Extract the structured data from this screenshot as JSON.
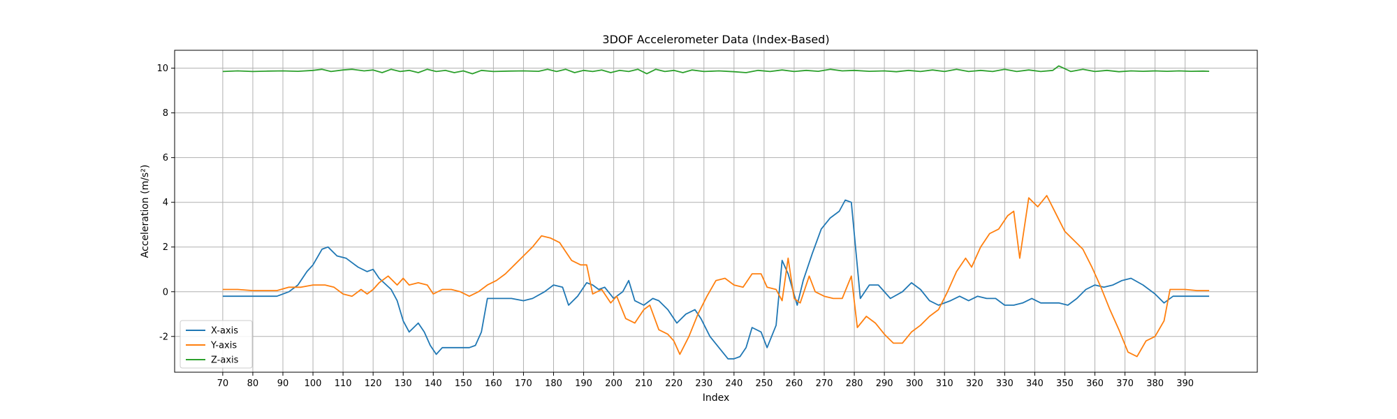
{
  "chart_data": {
    "type": "line",
    "title": "3DOF Accelerometer Data (Index-Based)",
    "xlabel": "Index",
    "ylabel": "Acceleration (m/s²)",
    "xlim": [
      54,
      414
    ],
    "ylim": [
      -3.6,
      10.8
    ],
    "xticks": [
      70,
      80,
      90,
      100,
      110,
      120,
      130,
      140,
      150,
      160,
      170,
      180,
      190,
      200,
      210,
      220,
      230,
      240,
      250,
      260,
      270,
      280,
      290,
      300,
      310,
      320,
      330,
      340,
      350,
      360,
      370,
      380,
      390
    ],
    "yticks": [
      -2,
      0,
      2,
      4,
      6,
      8,
      10
    ],
    "grid": true,
    "legend_position": "lower-left",
    "series": [
      {
        "name": "X-axis",
        "color": "#1f77b4",
        "x": [
          70,
          75,
          80,
          85,
          88,
          92,
          95,
          98,
          100,
          103,
          105,
          108,
          111,
          115,
          118,
          120,
          122,
          126,
          128,
          130,
          132,
          135,
          137,
          139,
          141,
          143,
          146,
          148,
          152,
          154,
          156,
          158,
          162,
          166,
          170,
          173,
          177,
          180,
          183,
          185,
          188,
          191,
          193,
          195,
          197,
          200,
          203,
          205,
          207,
          210,
          213,
          215,
          218,
          221,
          224,
          227,
          229,
          232,
          235,
          238,
          240,
          242,
          244,
          246,
          249,
          251,
          254,
          256,
          258,
          261,
          263,
          266,
          269,
          272,
          275,
          277,
          279,
          282,
          285,
          288,
          292,
          296,
          299,
          302,
          305,
          308,
          312,
          315,
          318,
          321,
          324,
          327,
          330,
          333,
          336,
          339,
          342,
          345,
          348,
          351,
          354,
          357,
          360,
          363,
          366,
          369,
          372,
          376,
          380,
          383,
          386,
          390,
          394,
          398
        ],
        "y": [
          -0.2,
          -0.2,
          -0.2,
          -0.2,
          -0.2,
          0.0,
          0.3,
          0.9,
          1.2,
          1.9,
          2.0,
          1.6,
          1.5,
          1.1,
          0.9,
          1.0,
          0.6,
          0.1,
          -0.4,
          -1.3,
          -1.8,
          -1.4,
          -1.8,
          -2.4,
          -2.8,
          -2.5,
          -2.5,
          -2.5,
          -2.5,
          -2.4,
          -1.8,
          -0.3,
          -0.3,
          -0.3,
          -0.4,
          -0.3,
          0.0,
          0.3,
          0.2,
          -0.6,
          -0.2,
          0.4,
          0.3,
          0.1,
          0.2,
          -0.3,
          0.0,
          0.5,
          -0.4,
          -0.6,
          -0.3,
          -0.4,
          -0.8,
          -1.4,
          -1.0,
          -0.8,
          -1.2,
          -2.0,
          -2.5,
          -3.0,
          -3.0,
          -2.9,
          -2.5,
          -1.6,
          -1.8,
          -2.5,
          -1.5,
          1.4,
          0.8,
          -0.6,
          0.5,
          1.7,
          2.8,
          3.3,
          3.6,
          4.1,
          4.0,
          -0.3,
          0.3,
          0.3,
          -0.3,
          0.0,
          0.4,
          0.1,
          -0.4,
          -0.6,
          -0.4,
          -0.2,
          -0.4,
          -0.2,
          -0.3,
          -0.3,
          -0.6,
          -0.6,
          -0.5,
          -0.3,
          -0.5,
          -0.5,
          -0.5,
          -0.6,
          -0.3,
          0.1,
          0.3,
          0.2,
          0.3,
          0.5,
          0.6,
          0.3,
          -0.1,
          -0.5,
          -0.2,
          -0.2,
          -0.2,
          -0.2
        ]
      },
      {
        "name": "Y-axis",
        "color": "#ff7f0e",
        "x": [
          70,
          75,
          80,
          85,
          88,
          92,
          96,
          100,
          104,
          107,
          110,
          113,
          116,
          118,
          120,
          122,
          125,
          128,
          130,
          132,
          135,
          138,
          140,
          143,
          146,
          149,
          152,
          155,
          158,
          161,
          164,
          167,
          170,
          173,
          176,
          179,
          182,
          184,
          186,
          189,
          191,
          193,
          196,
          199,
          201,
          204,
          207,
          210,
          212,
          215,
          218,
          220,
          222,
          225,
          228,
          231,
          234,
          237,
          240,
          243,
          246,
          249,
          251,
          254,
          256,
          258,
          260,
          262,
          265,
          267,
          270,
          273,
          276,
          279,
          281,
          284,
          287,
          290,
          293,
          296,
          299,
          302,
          305,
          308,
          311,
          314,
          317,
          319,
          322,
          325,
          328,
          331,
          333,
          335,
          338,
          341,
          344,
          347,
          350,
          353,
          356,
          359,
          362,
          365,
          368,
          371,
          374,
          377,
          380,
          383,
          385,
          390,
          394,
          398
        ],
        "y": [
          0.1,
          0.1,
          0.05,
          0.05,
          0.05,
          0.2,
          0.2,
          0.3,
          0.3,
          0.2,
          -0.1,
          -0.2,
          0.1,
          -0.1,
          0.1,
          0.4,
          0.7,
          0.3,
          0.6,
          0.3,
          0.4,
          0.3,
          -0.1,
          0.1,
          0.1,
          0.0,
          -0.2,
          0.0,
          0.3,
          0.5,
          0.8,
          1.2,
          1.6,
          2.0,
          2.5,
          2.4,
          2.2,
          1.8,
          1.4,
          1.2,
          1.2,
          -0.1,
          0.1,
          -0.5,
          -0.2,
          -1.2,
          -1.4,
          -0.8,
          -0.6,
          -1.7,
          -1.9,
          -2.2,
          -2.8,
          -2.0,
          -1.0,
          -0.2,
          0.5,
          0.6,
          0.3,
          0.2,
          0.8,
          0.8,
          0.2,
          0.1,
          -0.4,
          1.5,
          -0.3,
          -0.5,
          0.7,
          0.0,
          -0.2,
          -0.3,
          -0.3,
          0.7,
          -1.6,
          -1.1,
          -1.4,
          -1.9,
          -2.3,
          -2.3,
          -1.8,
          -1.5,
          -1.1,
          -0.8,
          0.0,
          0.9,
          1.5,
          1.1,
          2.0,
          2.6,
          2.8,
          3.4,
          3.6,
          1.5,
          4.2,
          3.8,
          4.3,
          3.5,
          2.7,
          2.3,
          1.9,
          1.1,
          0.2,
          -0.8,
          -1.7,
          -2.7,
          -2.9,
          -2.2,
          -2.0,
          -1.3,
          0.1,
          0.1,
          0.05,
          0.05
        ]
      },
      {
        "name": "Z-axis",
        "color": "#2ca02c",
        "x": [
          70,
          75,
          80,
          85,
          90,
          95,
          100,
          103,
          106,
          110,
          113,
          117,
          120,
          123,
          126,
          129,
          132,
          135,
          138,
          141,
          144,
          147,
          150,
          153,
          156,
          160,
          165,
          170,
          175,
          178,
          181,
          184,
          187,
          190,
          193,
          196,
          199,
          202,
          205,
          208,
          211,
          214,
          217,
          220,
          223,
          226,
          230,
          235,
          240,
          244,
          248,
          252,
          256,
          260,
          264,
          268,
          272,
          276,
          280,
          285,
          290,
          294,
          298,
          302,
          306,
          310,
          314,
          318,
          322,
          326,
          330,
          334,
          338,
          342,
          346,
          348,
          352,
          356,
          360,
          364,
          368,
          372,
          376,
          380,
          384,
          388,
          392,
          396,
          398
        ],
        "y": [
          9.85,
          9.88,
          9.85,
          9.87,
          9.88,
          9.86,
          9.9,
          9.95,
          9.85,
          9.92,
          9.95,
          9.88,
          9.92,
          9.8,
          9.95,
          9.85,
          9.9,
          9.8,
          9.95,
          9.85,
          9.9,
          9.8,
          9.88,
          9.75,
          9.9,
          9.85,
          9.87,
          9.88,
          9.86,
          9.95,
          9.85,
          9.95,
          9.8,
          9.9,
          9.85,
          9.92,
          9.8,
          9.9,
          9.85,
          9.95,
          9.75,
          9.95,
          9.85,
          9.9,
          9.8,
          9.92,
          9.85,
          9.88,
          9.84,
          9.8,
          9.9,
          9.85,
          9.92,
          9.85,
          9.9,
          9.86,
          9.95,
          9.88,
          9.9,
          9.86,
          9.88,
          9.84,
          9.9,
          9.85,
          9.92,
          9.85,
          9.95,
          9.85,
          9.9,
          9.85,
          9.95,
          9.85,
          9.92,
          9.85,
          9.9,
          10.1,
          9.85,
          9.95,
          9.85,
          9.9,
          9.84,
          9.88,
          9.86,
          9.88,
          9.86,
          9.88,
          9.86,
          9.87,
          9.86
        ]
      }
    ]
  }
}
